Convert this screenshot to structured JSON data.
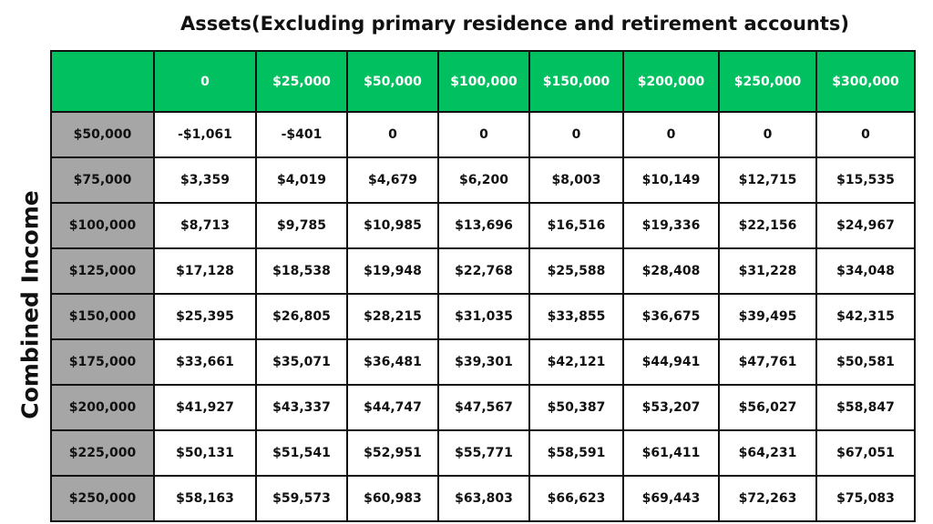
{
  "title": "Assets(Excluding primary residence and retirement accounts)",
  "row_axis_label": "Combined Income",
  "table": {
    "columns": [
      "0",
      "$25,000",
      "$50,000",
      "$100,000",
      "$150,000",
      "$200,000",
      "$250,000",
      "$300,000"
    ],
    "rows": [
      {
        "label": "$50,000",
        "cells": [
          "-$1,061",
          "-$401",
          "0",
          "0",
          "0",
          "0",
          "0",
          "0"
        ]
      },
      {
        "label": "$75,000",
        "cells": [
          "$3,359",
          "$4,019",
          "$4,679",
          "$6,200",
          "$8,003",
          "$10,149",
          "$12,715",
          "$15,535"
        ]
      },
      {
        "label": "$100,000",
        "cells": [
          "$8,713",
          "$9,785",
          "$10,985",
          "$13,696",
          "$16,516",
          "$19,336",
          "$22,156",
          "$24,967"
        ]
      },
      {
        "label": "$125,000",
        "cells": [
          "$17,128",
          "$18,538",
          "$19,948",
          "$22,768",
          "$25,588",
          "$28,408",
          "$31,228",
          "$34,048"
        ]
      },
      {
        "label": "$150,000",
        "cells": [
          "$25,395",
          "$26,805",
          "$28,215",
          "$31,035",
          "$33,855",
          "$36,675",
          "$39,495",
          "$42,315"
        ]
      },
      {
        "label": "$175,000",
        "cells": [
          "$33,661",
          "$35,071",
          "$36,481",
          "$39,301",
          "$42,121",
          "$44,941",
          "$47,761",
          "$50,581"
        ]
      },
      {
        "label": "$200,000",
        "cells": [
          "$41,927",
          "$43,337",
          "$44,747",
          "$47,567",
          "$50,387",
          "$53,207",
          "$56,027",
          "$58,847"
        ]
      },
      {
        "label": "$225,000",
        "cells": [
          "$50,131",
          "$51,541",
          "$52,951",
          "$55,771",
          "$58,591",
          "$61,411",
          "$64,231",
          "$67,051"
        ]
      },
      {
        "label": "$250,000",
        "cells": [
          "$58,163",
          "$59,573",
          "$60,983",
          "$63,803",
          "$66,623",
          "$69,443",
          "$72,263",
          "$75,083"
        ]
      }
    ]
  }
}
